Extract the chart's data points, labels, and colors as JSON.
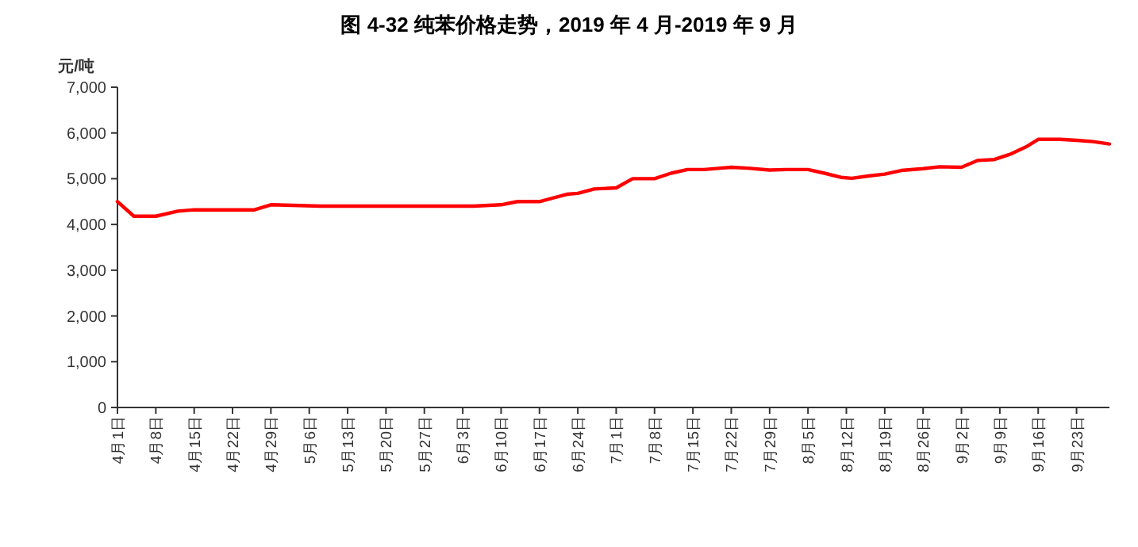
{
  "chart_data": {
    "type": "line",
    "title": "图 4-32  纯苯价格走势，2019 年 4 月-2019 年 9 月",
    "ylabel": "元/吨",
    "xlim": [
      "2019-04-01",
      "2019-09-29"
    ],
    "ylim": [
      0,
      7000
    ],
    "yticks": [
      0,
      {
        "value": 1000,
        "label": "1,000"
      },
      {
        "value": 2000,
        "label": "2,000"
      },
      {
        "value": 3000,
        "label": "3,000"
      },
      {
        "value": 4000,
        "label": "4,000"
      },
      {
        "value": 5000,
        "label": "5,000"
      },
      {
        "value": 6000,
        "label": "6,000"
      },
      {
        "value": 7000,
        "label": "7,000"
      }
    ],
    "xticks": [
      {
        "value": "2019-04-01",
        "label": "4月1日"
      },
      {
        "value": "2019-04-08",
        "label": "4月8日"
      },
      {
        "value": "2019-04-15",
        "label": "4月15日"
      },
      {
        "value": "2019-04-22",
        "label": "4月22日"
      },
      {
        "value": "2019-04-29",
        "label": "4月29日"
      },
      {
        "value": "2019-05-06",
        "label": "5月6日"
      },
      {
        "value": "2019-05-13",
        "label": "5月13日"
      },
      {
        "value": "2019-05-20",
        "label": "5月20日"
      },
      {
        "value": "2019-05-27",
        "label": "5月27日"
      },
      {
        "value": "2019-06-03",
        "label": "6月3日"
      },
      {
        "value": "2019-06-10",
        "label": "6月10日"
      },
      {
        "value": "2019-06-17",
        "label": "6月17日"
      },
      {
        "value": "2019-06-24",
        "label": "6月24日"
      },
      {
        "value": "2019-07-01",
        "label": "7月1日"
      },
      {
        "value": "2019-07-08",
        "label": "7月8日"
      },
      {
        "value": "2019-07-15",
        "label": "7月15日"
      },
      {
        "value": "2019-07-22",
        "label": "7月22日"
      },
      {
        "value": "2019-07-29",
        "label": "7月29日"
      },
      {
        "value": "2019-08-05",
        "label": "8月5日"
      },
      {
        "value": "2019-08-12",
        "label": "8月12日"
      },
      {
        "value": "2019-08-19",
        "label": "8月19日"
      },
      {
        "value": "2019-08-26",
        "label": "8月26日"
      },
      {
        "value": "2019-09-02",
        "label": "9月2日"
      },
      {
        "value": "2019-09-09",
        "label": "9月9日"
      },
      {
        "value": "2019-09-16",
        "label": "9月16日"
      },
      {
        "value": "2019-09-23",
        "label": "9月23日"
      }
    ],
    "x": [
      "2019-04-01",
      "2019-04-04",
      "2019-04-08",
      "2019-04-12",
      "2019-04-15",
      "2019-04-26",
      "2019-04-29",
      "2019-05-08",
      "2019-06-05",
      "2019-06-10",
      "2019-06-13",
      "2019-06-17",
      "2019-06-22",
      "2019-06-24",
      "2019-06-27",
      "2019-07-01",
      "2019-07-04",
      "2019-07-08",
      "2019-07-11",
      "2019-07-14",
      "2019-07-17",
      "2019-07-20",
      "2019-07-22",
      "2019-07-25",
      "2019-07-29",
      "2019-08-01",
      "2019-08-05",
      "2019-08-08",
      "2019-08-11",
      "2019-08-13",
      "2019-08-16",
      "2019-08-19",
      "2019-08-22",
      "2019-08-26",
      "2019-08-29",
      "2019-09-02",
      "2019-09-05",
      "2019-09-08",
      "2019-09-11",
      "2019-09-14",
      "2019-09-16",
      "2019-09-20",
      "2019-09-23",
      "2019-09-26",
      "2019-09-29"
    ],
    "series": [
      {
        "color": "#ff0000",
        "values": [
          4500,
          4180,
          4180,
          4290,
          4320,
          4320,
          4430,
          4400,
          4400,
          4430,
          4500,
          4500,
          4660,
          4680,
          4775,
          4800,
          5000,
          5000,
          5120,
          5200,
          5200,
          5230,
          5250,
          5230,
          5190,
          5200,
          5200,
          5120,
          5030,
          5010,
          5060,
          5100,
          5180,
          5220,
          5260,
          5250,
          5400,
          5420,
          5540,
          5710,
          5860,
          5860,
          5840,
          5810,
          5760
        ]
      }
    ]
  }
}
